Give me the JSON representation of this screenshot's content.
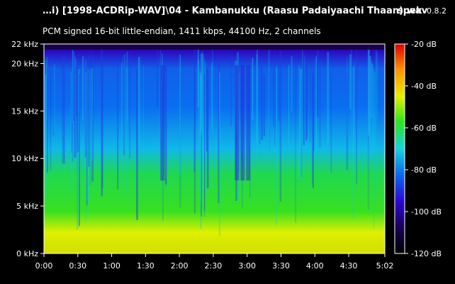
{
  "header": {
    "file_title": "…i) [1998-ACDRip-WAV]\\04 - Kambanukku (Raasu Padaiyaachi Thaan).wav",
    "app_name": "spek",
    "app_version": "0.8.2",
    "format_info": "PCM signed 16-bit little-endian, 1411 kbps, 44100 Hz, 2 channels"
  },
  "colors": {
    "background": "#000000",
    "axis": "#ffffff",
    "palette": [
      "#000000",
      "#1a005a",
      "#2c06d8",
      "#0a6cf0",
      "#18d2e0",
      "#2ce61a",
      "#e6f000",
      "#ff9000",
      "#e00000"
    ]
  },
  "chart_data": {
    "type": "heatmap",
    "title": "",
    "xlabel": "",
    "ylabel": "",
    "x_ticks": [
      "0:00",
      "0:30",
      "1:00",
      "1:30",
      "2:00",
      "2:30",
      "3:00",
      "3:30",
      "4:00",
      "4:30",
      "5:02"
    ],
    "x_tick_seconds": [
      0,
      30,
      60,
      90,
      120,
      150,
      180,
      210,
      240,
      270,
      302
    ],
    "xlim": [
      0,
      302
    ],
    "y_ticks": [
      "0 kHz",
      "5 kHz",
      "10 kHz",
      "15 kHz",
      "20 kHz",
      "22 kHz"
    ],
    "y_tick_khz": [
      0,
      5,
      10,
      15,
      20,
      22.05
    ],
    "ylim": [
      0,
      22.05
    ],
    "colorbar_ticks": [
      "-20 dB",
      "-40 dB",
      "-60 dB",
      "-80 dB",
      "-100 dB",
      "-120 dB"
    ],
    "colorbar_db": [
      -20,
      -40,
      -60,
      -80,
      -100,
      -120
    ],
    "zlim": [
      -120,
      -20
    ],
    "grid": false
  }
}
